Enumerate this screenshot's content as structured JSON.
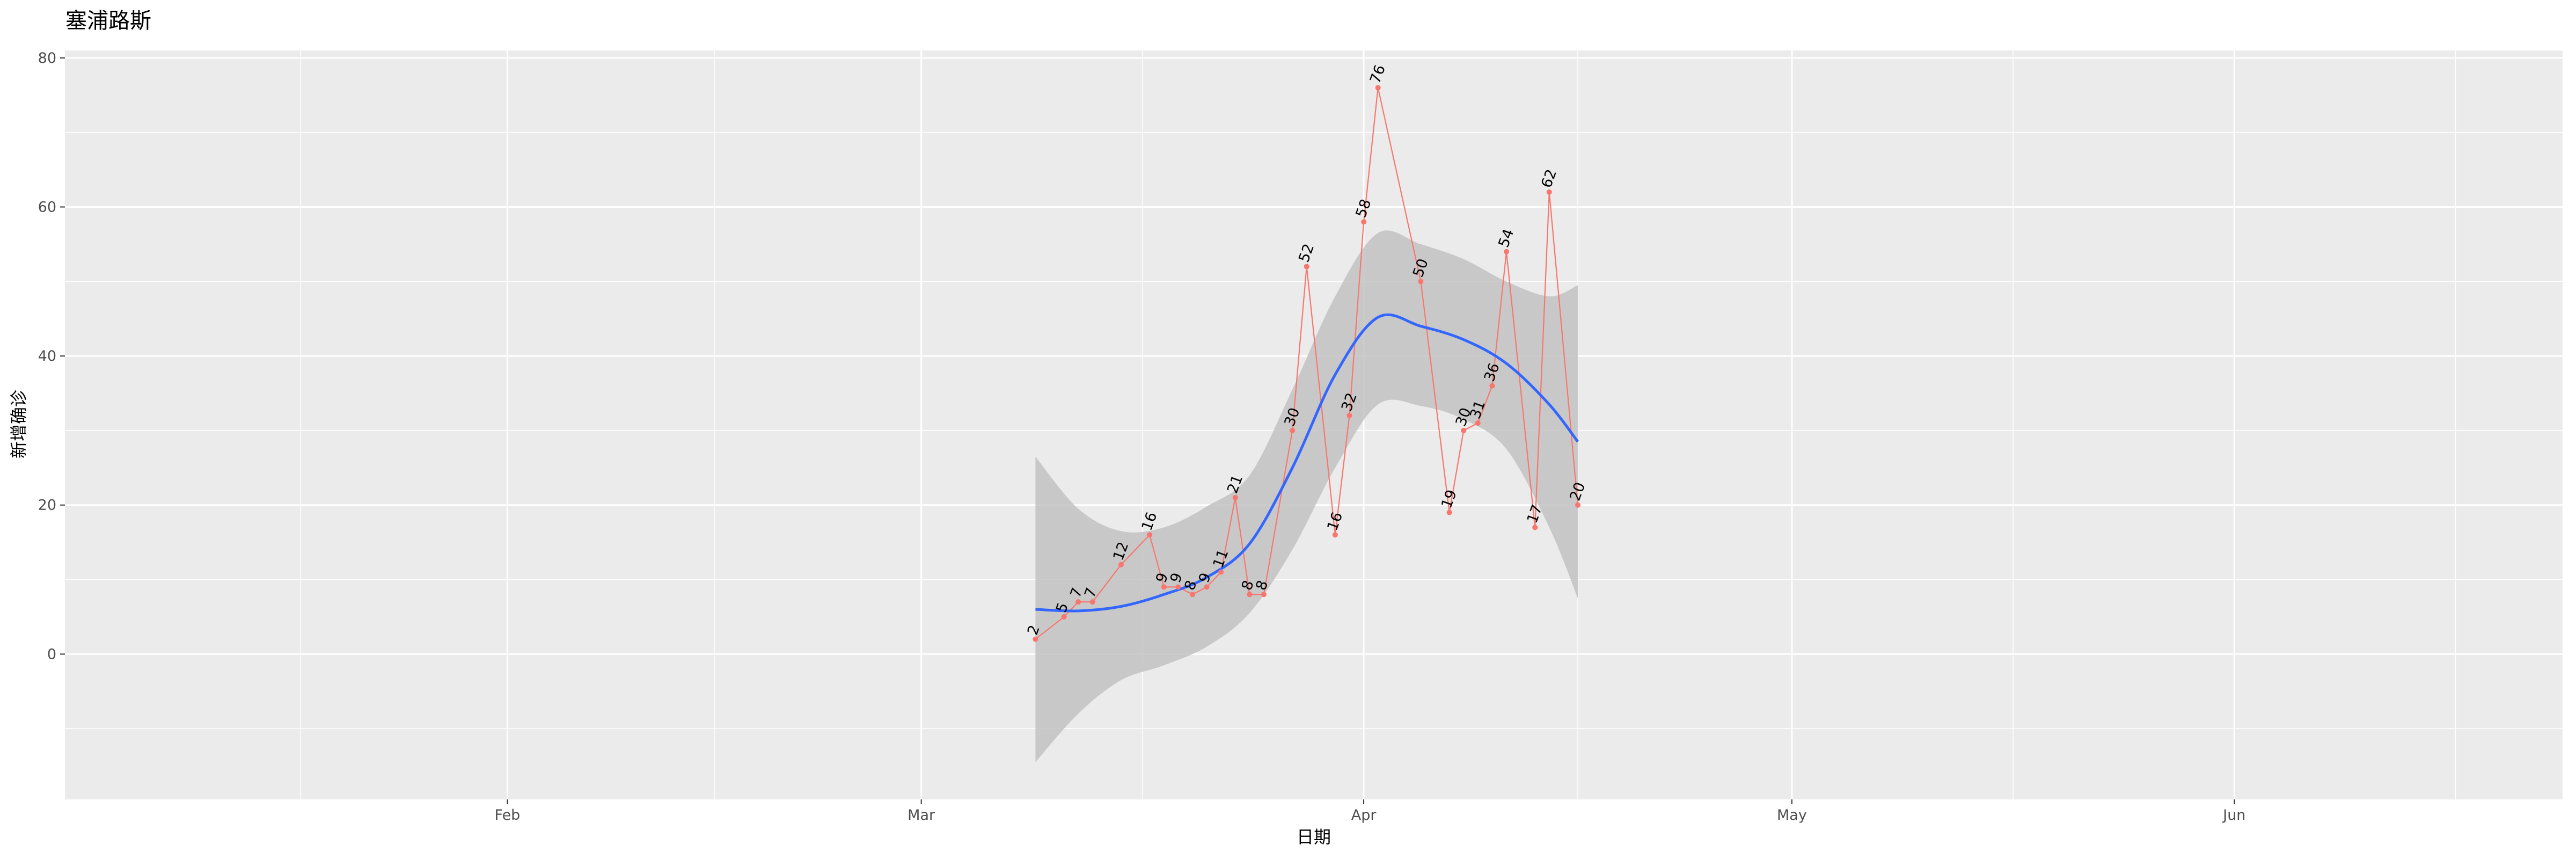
{
  "chart_data": {
    "type": "line",
    "title": "塞浦路斯",
    "xlabel": "日期",
    "ylabel": "新增确诊",
    "x_tick_labels": [
      "Feb",
      "Mar",
      "Apr",
      "May",
      "Jun"
    ],
    "x_tick_dates": [
      "2020-02-01",
      "2020-03-01",
      "2020-04-01",
      "2020-05-01",
      "2020-06-01"
    ],
    "xlim": [
      "2020-01-01",
      "2020-06-24"
    ],
    "ylim": [
      -19.5,
      81
    ],
    "y_ticks": [
      0,
      20,
      40,
      60,
      80
    ],
    "grid": true,
    "series": [
      {
        "points": [
          {
            "date": "2020-03-09",
            "value": 2
          },
          {
            "date": "2020-03-11",
            "value": 5
          },
          {
            "date": "2020-03-12",
            "value": 7
          },
          {
            "date": "2020-03-13",
            "value": 7
          },
          {
            "date": "2020-03-15",
            "value": 12
          },
          {
            "date": "2020-03-17",
            "value": 16
          },
          {
            "date": "2020-03-18",
            "value": 9
          },
          {
            "date": "2020-03-19",
            "value": 9
          },
          {
            "date": "2020-03-20",
            "value": 8
          },
          {
            "date": "2020-03-21",
            "value": 9
          },
          {
            "date": "2020-03-22",
            "value": 11
          },
          {
            "date": "2020-03-23",
            "value": 21
          },
          {
            "date": "2020-03-24",
            "value": 8
          },
          {
            "date": "2020-03-25",
            "value": 8
          },
          {
            "date": "2020-03-27",
            "value": 30
          },
          {
            "date": "2020-03-28",
            "value": 52
          },
          {
            "date": "2020-03-30",
            "value": 16
          },
          {
            "date": "2020-03-31",
            "value": 32
          },
          {
            "date": "2020-04-01",
            "value": 58
          },
          {
            "date": "2020-04-02",
            "value": 76
          },
          {
            "date": "2020-04-05",
            "value": 50
          },
          {
            "date": "2020-04-07",
            "value": 19
          },
          {
            "date": "2020-04-08",
            "value": 30
          },
          {
            "date": "2020-04-09",
            "value": 31
          },
          {
            "date": "2020-04-10",
            "value": 36
          },
          {
            "date": "2020-04-11",
            "value": 54
          },
          {
            "date": "2020-04-13",
            "value": 17
          },
          {
            "date": "2020-04-14",
            "value": 62
          },
          {
            "date": "2020-04-16",
            "value": 20
          }
        ]
      }
    ],
    "smooth": {
      "method": "loess",
      "points": [
        {
          "date": "2020-03-09",
          "value": 6,
          "lo": -14.5,
          "hi": 26.5
        },
        {
          "date": "2020-03-12",
          "value": 5.8,
          "lo": -8,
          "hi": 19.5
        },
        {
          "date": "2020-03-15",
          "value": 6.4,
          "lo": -3.5,
          "hi": 16.5
        },
        {
          "date": "2020-03-18",
          "value": 8,
          "lo": -1.5,
          "hi": 17
        },
        {
          "date": "2020-03-21",
          "value": 10.3,
          "lo": 1,
          "hi": 19.8
        },
        {
          "date": "2020-03-24",
          "value": 14.8,
          "lo": 5.5,
          "hi": 24
        },
        {
          "date": "2020-03-27",
          "value": 25,
          "lo": 14,
          "hi": 35.5
        },
        {
          "date": "2020-03-30",
          "value": 37.5,
          "lo": 25,
          "hi": 48
        },
        {
          "date": "2020-04-02",
          "value": 45.2,
          "lo": 33.5,
          "hi": 56.5
        },
        {
          "date": "2020-04-05",
          "value": 44,
          "lo": 33.3,
          "hi": 55
        },
        {
          "date": "2020-04-08",
          "value": 42.2,
          "lo": 31.5,
          "hi": 53
        },
        {
          "date": "2020-04-11",
          "value": 39,
          "lo": 27.5,
          "hi": 50
        },
        {
          "date": "2020-04-14",
          "value": 33.5,
          "lo": 17,
          "hi": 48
        },
        {
          "date": "2020-04-16",
          "value": 28.5,
          "lo": 7.5,
          "hi": 49.5
        }
      ]
    },
    "colors": {
      "panel_background": "#ebebeb",
      "grid": "#ffffff",
      "series": "#f8766d",
      "smooth": "#3366ff",
      "ribbon": "#c2c2c2"
    }
  }
}
